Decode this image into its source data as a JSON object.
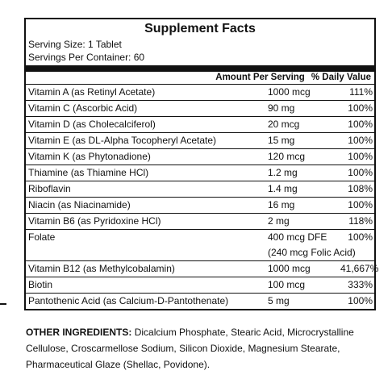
{
  "header": {
    "title": "Supplement Facts",
    "serving_size": "Serving Size: 1 Tablet",
    "servings_per_container": "Servings Per Container: 60"
  },
  "table": {
    "columns": [
      "Amount Per Serving",
      "% Daily Value"
    ],
    "rows": [
      {
        "name": "Vitamin A (as Retinyl Acetate)",
        "amount": "1000 mcg",
        "dv": "111%"
      },
      {
        "name": "Vitamin C (Ascorbic Acid)",
        "amount": "90 mg",
        "dv": "100%"
      },
      {
        "name": "Vitamin D (as Cholecalciferol)",
        "amount": "20 mcg",
        "dv": "100%"
      },
      {
        "name": "Vitamin E (as DL-Alpha Tocopheryl Acetate)",
        "amount": "15 mg",
        "dv": "100%"
      },
      {
        "name": "Vitamin K (as Phytonadione)",
        "amount": "120 mcg",
        "dv": "100%"
      },
      {
        "name": "Thiamine (as Thiamine HCl)",
        "amount": "1.2 mg",
        "dv": "100%"
      },
      {
        "name": "Riboflavin",
        "amount": "1.4 mg",
        "dv": "108%"
      },
      {
        "name": "Niacin (as Niacinamide)",
        "amount": "16 mg",
        "dv": "100%"
      },
      {
        "name": "Vitamin B6 (as Pyridoxine HCl)",
        "amount": "2 mg",
        "dv": "118%"
      },
      {
        "name": "Folate",
        "amount": "400 mcg DFE",
        "dv": "100%",
        "amount_note": "(240 mcg Folic Acid)"
      },
      {
        "name": "Vitamin B12 (as Methylcobalamin)",
        "amount": "1000 mcg",
        "dv": "41,667%"
      },
      {
        "name": "Biotin",
        "amount": "100 mcg",
        "dv": "333%"
      },
      {
        "name": "Pantothenic Acid (as Calcium-D-Pantothenate)",
        "amount": "5 mg",
        "dv": "100%"
      }
    ]
  },
  "other_ingredients": {
    "label": "OTHER INGREDIENTS:",
    "text": "Dicalcium Phosphate, Stearic Acid, Microcrystalline Cellulose, Croscarmellose Sodium, Silicon Dioxide, Magnesium Stearate, Pharmaceutical Glaze (Shellac, Povidone)."
  }
}
